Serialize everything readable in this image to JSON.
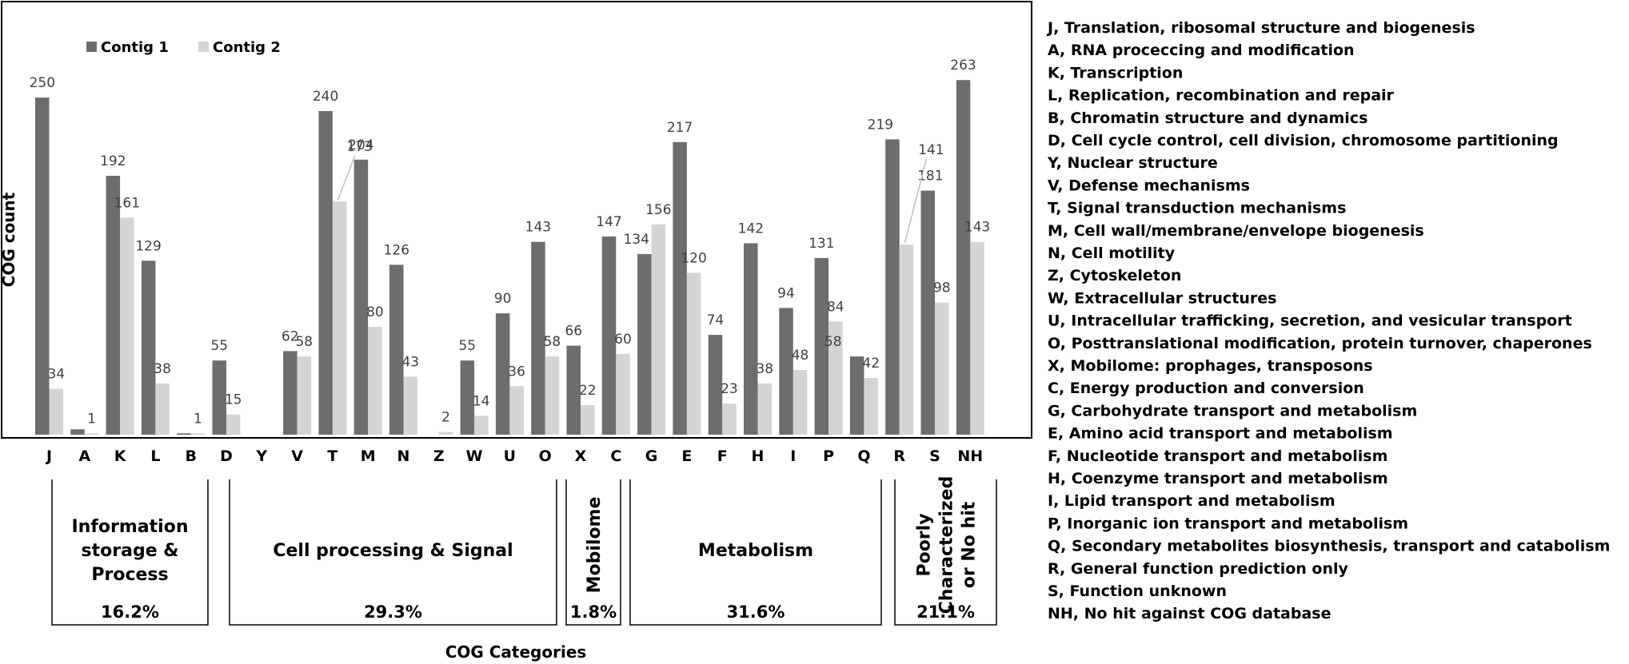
{
  "chart_data": {
    "type": "bar",
    "title": "",
    "xlabel": "COG Categories",
    "ylabel": "COG count",
    "ylim": [
      0,
      300
    ],
    "grid": false,
    "legend_position": "top-left",
    "categories": [
      "J",
      "A",
      "K",
      "L",
      "B",
      "D",
      "Y",
      "V",
      "T",
      "M",
      "N",
      "Z",
      "W",
      "U",
      "O",
      "X",
      "C",
      "G",
      "E",
      "F",
      "H",
      "I",
      "P",
      "Q",
      "R",
      "S",
      "NH"
    ],
    "series": [
      {
        "name": "Contig 1",
        "color": "#6d6d6d",
        "values": [
          250,
          4,
          192,
          129,
          1,
          55,
          0,
          62,
          240,
          204,
          126,
          0,
          55,
          90,
          143,
          66,
          147,
          134,
          217,
          74,
          142,
          94,
          131,
          58,
          219,
          181,
          263
        ]
      },
      {
        "name": "Contig 2",
        "color": "#d4d4d4",
        "values": [
          34,
          1,
          161,
          38,
          1,
          15,
          0,
          58,
          173,
          80,
          43,
          2,
          14,
          36,
          58,
          22,
          60,
          156,
          120,
          23,
          38,
          48,
          84,
          42,
          141,
          98,
          143
        ]
      }
    ],
    "labels": {
      "series0": [
        "250",
        "",
        "192",
        "129",
        "",
        "55",
        "",
        "62",
        "240",
        "204",
        "126",
        "",
        "55",
        "90",
        "143",
        "66",
        "147",
        "134",
        "217",
        "74",
        "142",
        "94",
        "131",
        "58",
        "219",
        "181",
        "263"
      ],
      "series1": [
        "34",
        "1",
        "161",
        "38",
        "1",
        "15",
        "",
        "58",
        "173",
        "80",
        "43",
        "2",
        "14",
        "36",
        "58",
        "22",
        "60",
        "156",
        "120",
        "23",
        "38",
        "48",
        "84",
        "42",
        "141",
        "98",
        "143"
      ]
    },
    "groups": [
      {
        "label_lines": [
          "Information",
          "storage &",
          "Process"
        ],
        "percent": "16.2%",
        "orientation": "horizontal",
        "from": 0,
        "to": 4
      },
      {
        "label_lines": [
          "Cell processing & Signal"
        ],
        "percent": "29.3%",
        "orientation": "horizontal",
        "from": 5,
        "to": 14
      },
      {
        "label_lines": [
          "Mobilome"
        ],
        "percent": "1.8%",
        "orientation": "vertical",
        "from": 15,
        "to": 15
      },
      {
        "label_lines": [
          "Metabolism"
        ],
        "percent": "31.6%",
        "orientation": "horizontal",
        "from": 16,
        "to": 23
      },
      {
        "label_lines": [
          "Poorly",
          "Characterized",
          "or No hit"
        ],
        "percent": "21.1%",
        "orientation": "vertical",
        "from": 24,
        "to": 26
      }
    ],
    "category_definitions": [
      "J,  Translation, ribosomal structure and biogenesis",
      "A, RNA proceccing and modification",
      "K, Transcription",
      "L, Replication, recombination and repair",
      "B, Chromatin structure and dynamics",
      "D, Cell cycle control, cell division, chromosome partitioning",
      "Y, Nuclear structure",
      "V, Defense mechanisms",
      "T, Signal transduction mechanisms",
      "M, Cell wall/membrane/envelope biogenesis",
      "N, Cell motility",
      "Z, Cytoskeleton",
      "W, Extracellular structures",
      "U, Intracellular trafficking, secretion, and vesicular transport",
      "O, Posttranslational modification, protein turnover, chaperones",
      "X, Mobilome: prophages, transposons",
      "C, Energy production and conversion",
      "G, Carbohydrate transport and metabolism",
      "E, Amino acid transport and metabolism",
      "F, Nucleotide transport and metabolism",
      "H, Coenzyme transport and metabolism",
      "I, Lipid transport and metabolism",
      "P, Inorganic ion transport and metabolism",
      "Q, Secondary metabolites biosynthesis, transport and catabolism",
      "R, General function prediction only",
      "S, Function unknown",
      "NH, No hit against COG database"
    ]
  }
}
